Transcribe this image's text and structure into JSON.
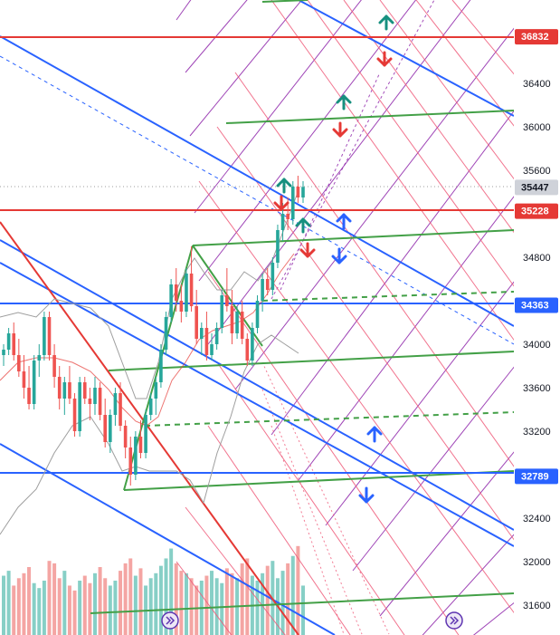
{
  "colors": {
    "candle_up": "#26a69a",
    "candle_down": "#ef5350",
    "vol_up": "#87cfc6",
    "vol_down": "#f4a5a3",
    "blue_line": "#2962ff",
    "red_line": "#e53935",
    "green_line": "#43a047",
    "purple_line": "#8e24aa",
    "pink_line": "#ef5b7a",
    "bb_line": "#9e9e9e",
    "arrow_green": "#17907f",
    "arrow_red": "#e53935",
    "arrow_blue": "#2962ff",
    "price_badge": "#cfd2d9"
  },
  "chart_data": {
    "type": "candlestick",
    "y_axis_ticks": [
      36400,
      36000,
      35600,
      34800,
      34400,
      34000,
      33600,
      33200,
      32400,
      32000,
      31600
    ],
    "ylim": [
      31400,
      37000
    ],
    "price_labels": [
      {
        "value": "36832",
        "style": "red"
      },
      {
        "value": "35447",
        "style": "current"
      },
      {
        "value": "35228",
        "style": "red"
      },
      {
        "value": "34363",
        "style": "blue"
      },
      {
        "value": "32789",
        "style": "blue"
      }
    ],
    "horizontal_levels": [
      {
        "value": 36832,
        "color": "red"
      },
      {
        "value": 35228,
        "color": "red"
      },
      {
        "value": 34363,
        "color": "blue"
      },
      {
        "value": 32789,
        "color": "blue"
      }
    ],
    "candles_ohlc": [
      [
        33900,
        34000,
        33800,
        33950
      ],
      [
        33950,
        34150,
        33900,
        34100
      ],
      [
        34100,
        34200,
        33850,
        33900
      ],
      [
        33900,
        34050,
        33700,
        33750
      ],
      [
        33750,
        33900,
        33500,
        33600
      ],
      [
        33600,
        33800,
        33400,
        33450
      ],
      [
        33450,
        33900,
        33400,
        33850
      ],
      [
        33850,
        34000,
        33700,
        33900
      ],
      [
        33900,
        34300,
        33850,
        34250
      ],
      [
        34250,
        34300,
        33850,
        33900
      ],
      [
        33900,
        34000,
        33600,
        33700
      ],
      [
        33700,
        33800,
        33400,
        33500
      ],
      [
        33500,
        33700,
        33350,
        33650
      ],
      [
        33650,
        33800,
        33450,
        33500
      ],
      [
        33500,
        33550,
        33150,
        33200
      ],
      [
        33200,
        33700,
        33150,
        33650
      ],
      [
        33650,
        33700,
        33450,
        33500
      ],
      [
        33500,
        33600,
        33300,
        33450
      ],
      [
        33450,
        33700,
        33350,
        33600
      ],
      [
        33600,
        33650,
        33300,
        33350
      ],
      [
        33350,
        33500,
        33050,
        33100
      ],
      [
        33100,
        33400,
        33000,
        33350
      ],
      [
        33350,
        33600,
        33250,
        33550
      ],
      [
        33550,
        33650,
        33200,
        33250
      ],
      [
        33250,
        33300,
        32950,
        33050
      ],
      [
        33050,
        33150,
        32700,
        32800
      ],
      [
        32800,
        33200,
        32750,
        33150
      ],
      [
        33150,
        33300,
        32950,
        33000
      ],
      [
        33000,
        33400,
        32950,
        33350
      ],
      [
        33350,
        33550,
        33300,
        33500
      ],
      [
        33500,
        33700,
        33350,
        33650
      ],
      [
        33650,
        34000,
        33600,
        33950
      ],
      [
        33950,
        34300,
        33900,
        34250
      ],
      [
        34250,
        34600,
        34200,
        34550
      ],
      [
        34550,
        34700,
        34300,
        34400
      ],
      [
        34400,
        34550,
        34200,
        34300
      ],
      [
        34300,
        34700,
        34250,
        34650
      ],
      [
        34650,
        34900,
        34300,
        34350
      ],
      [
        34350,
        34500,
        34000,
        34050
      ],
      [
        34050,
        34200,
        33900,
        34150
      ],
      [
        34150,
        34300,
        33850,
        33900
      ],
      [
        33900,
        34100,
        33850,
        34000
      ],
      [
        34000,
        34200,
        33950,
        34150
      ],
      [
        34150,
        34500,
        34100,
        34450
      ],
      [
        34450,
        34700,
        34300,
        34350
      ],
      [
        34350,
        34500,
        34000,
        34100
      ],
      [
        34100,
        34350,
        34050,
        34300
      ],
      [
        34300,
        34400,
        34000,
        34050
      ],
      [
        34050,
        34100,
        33800,
        33850
      ],
      [
        33850,
        34200,
        33800,
        34150
      ],
      [
        34150,
        34450,
        34100,
        34400
      ],
      [
        34400,
        34650,
        34300,
        34600
      ],
      [
        34600,
        34700,
        34450,
        34500
      ],
      [
        34500,
        34800,
        34450,
        34750
      ],
      [
        34750,
        35100,
        34700,
        35050
      ],
      [
        35050,
        35300,
        34950,
        35200
      ],
      [
        35200,
        35350,
        35050,
        35150
      ],
      [
        35150,
        35500,
        35100,
        35450
      ],
      [
        35450,
        35550,
        35300,
        35350
      ],
      [
        35350,
        35500,
        35300,
        35447
      ]
    ],
    "volume": [
      48,
      52,
      40,
      46,
      50,
      55,
      42,
      38,
      44,
      60,
      58,
      46,
      52,
      40,
      36,
      44,
      48,
      42,
      50,
      55,
      46,
      40,
      44,
      52,
      58,
      62,
      48,
      54,
      40,
      46,
      50,
      56,
      62,
      70,
      58,
      52,
      50,
      46,
      40,
      44,
      48,
      52,
      46,
      42,
      54,
      50,
      46,
      58,
      62,
      48,
      44,
      50,
      56,
      60,
      46,
      52,
      58,
      64,
      72,
      40
    ],
    "vol_max": 110
  }
}
